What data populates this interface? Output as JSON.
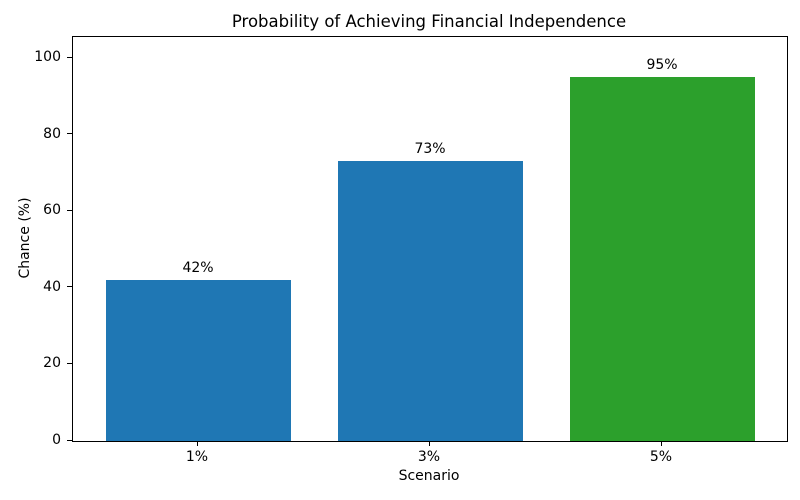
{
  "chart_data": {
    "type": "bar",
    "title": "Probability of Achieving Financial Independence",
    "xlabel": "Scenario",
    "ylabel": "Chance (%)",
    "categories": [
      "1%",
      "3%",
      "5%"
    ],
    "values": [
      42,
      73,
      95
    ],
    "bar_labels": [
      "42%",
      "73%",
      "95%"
    ],
    "bar_colors": [
      "#1f77b4",
      "#1f77b4",
      "#2ca02c"
    ],
    "yticks": [
      0,
      20,
      40,
      60,
      80,
      100
    ],
    "ylim": [
      0,
      105.5
    ],
    "grid": false,
    "legend": "none",
    "background_color": "#ffffff",
    "axis_color": "#000000"
  }
}
